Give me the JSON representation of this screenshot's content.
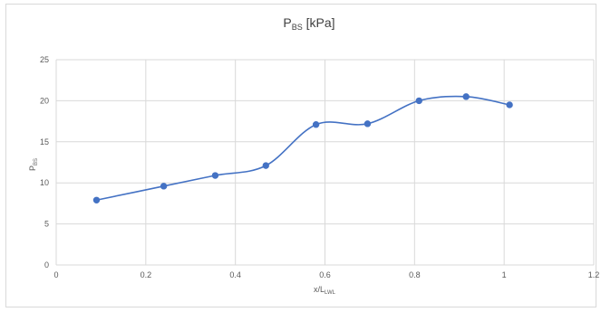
{
  "chart_data": {
    "type": "scatter",
    "title": {
      "main": "P",
      "sub": "BS",
      "suffix": " [kPa]"
    },
    "xlabel": {
      "main": "x/L",
      "sub": "LWL"
    },
    "ylabel": {
      "main": "P",
      "sub": "BS"
    },
    "xlim": [
      0,
      1.2
    ],
    "ylim": [
      0,
      25
    ],
    "xticks": [
      "0",
      "0.2",
      "0.4",
      "0.6",
      "0.8",
      "1",
      "1.2"
    ],
    "yticks": [
      "0",
      "5",
      "10",
      "15",
      "20",
      "25"
    ],
    "grid": true,
    "legend": "none",
    "line_style": "smooth",
    "color": "#4472c4",
    "series": [
      {
        "x": [
          0.09,
          0.24,
          0.355,
          0.468,
          0.58,
          0.695,
          0.81,
          0.915,
          1.012
        ],
        "y": [
          7.9,
          9.6,
          10.9,
          12.1,
          17.1,
          17.2,
          20.0,
          20.5,
          19.5
        ]
      }
    ]
  }
}
